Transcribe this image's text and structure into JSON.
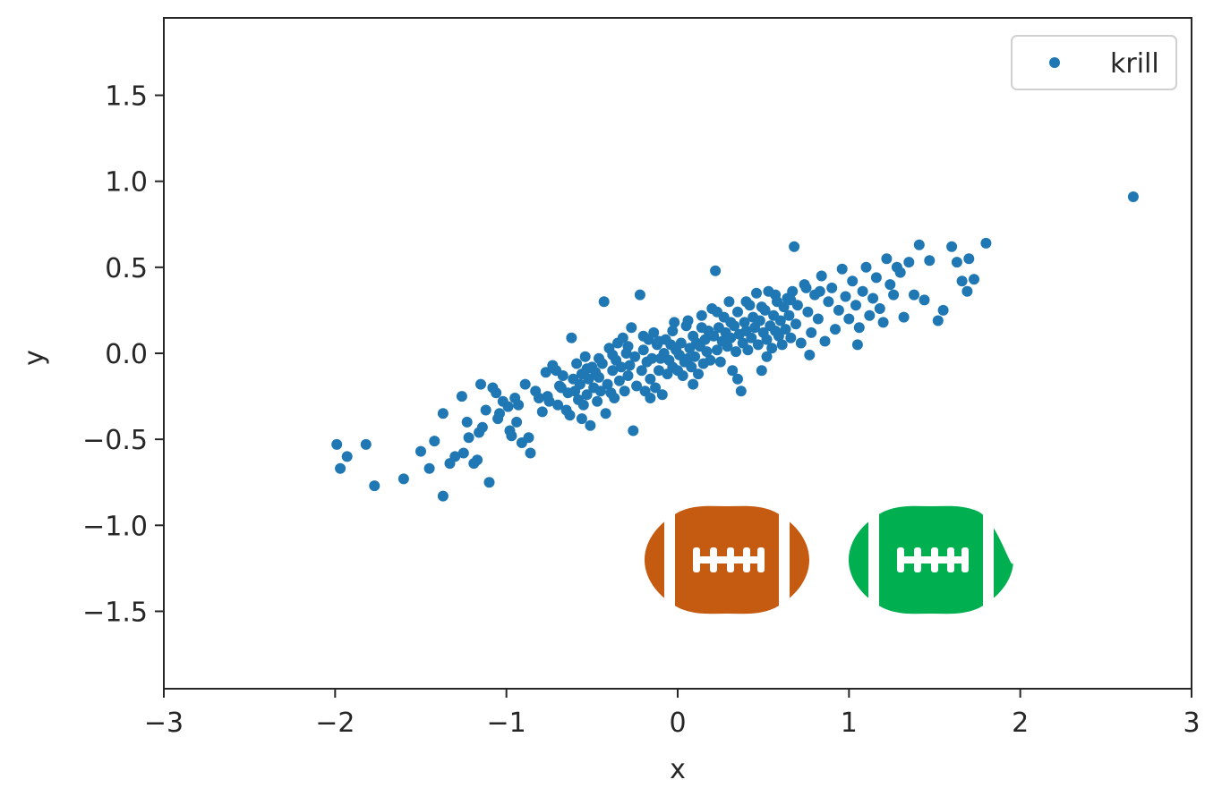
{
  "chart_data": {
    "type": "scatter",
    "title": "",
    "xlabel": "x",
    "ylabel": "y",
    "xlim": [
      -3,
      3
    ],
    "ylim": [
      -1.95,
      1.95
    ],
    "xticks": [
      -3,
      -2,
      -1,
      0,
      1,
      2,
      3
    ],
    "xtick_labels": [
      "−3",
      "−2",
      "−1",
      "0",
      "1",
      "2",
      "3"
    ],
    "yticks": [
      -1.5,
      -1.0,
      -0.5,
      0.0,
      0.5,
      1.0,
      1.5
    ],
    "ytick_labels": [
      "−1.5",
      "−1.0",
      "−0.5",
      "0.0",
      "0.5",
      "1.0",
      "1.5"
    ],
    "grid": false,
    "legend": {
      "placement": "top-right",
      "entries": [
        "krill"
      ]
    },
    "series": [
      {
        "name": "krill",
        "color": "#1f77b4",
        "points": [
          [
            -1.99,
            -0.53
          ],
          [
            -1.97,
            -0.67
          ],
          [
            -1.93,
            -0.6
          ],
          [
            -1.82,
            -0.53
          ],
          [
            -1.77,
            -0.77
          ],
          [
            -1.6,
            -0.73
          ],
          [
            -1.5,
            -0.57
          ],
          [
            -1.45,
            -0.67
          ],
          [
            -1.42,
            -0.51
          ],
          [
            -1.37,
            -0.83
          ],
          [
            -1.37,
            -0.35
          ],
          [
            -1.33,
            -0.64
          ],
          [
            -1.3,
            -0.6
          ],
          [
            -1.26,
            -0.25
          ],
          [
            -1.25,
            -0.58
          ],
          [
            -1.22,
            -0.49
          ],
          [
            -1.19,
            -0.64
          ],
          [
            -1.17,
            -0.62
          ],
          [
            -1.16,
            -0.46
          ],
          [
            -1.15,
            -0.18
          ],
          [
            -1.14,
            -0.43
          ],
          [
            -1.12,
            -0.33
          ],
          [
            -1.1,
            -0.75
          ],
          [
            -1.08,
            -0.2
          ],
          [
            -1.06,
            -0.23
          ],
          [
            -1.04,
            -0.35
          ],
          [
            -1.02,
            -0.28
          ],
          [
            -0.99,
            -0.31
          ],
          [
            -0.98,
            -0.45
          ],
          [
            -0.97,
            -0.48
          ],
          [
            -0.95,
            -0.26
          ],
          [
            -0.93,
            -0.3
          ],
          [
            -0.91,
            -0.52
          ],
          [
            -0.89,
            -0.18
          ],
          [
            -0.87,
            -0.49
          ],
          [
            -0.86,
            -0.58
          ],
          [
            -0.83,
            -0.22
          ],
          [
            -0.81,
            -0.26
          ],
          [
            -0.79,
            -0.34
          ],
          [
            -0.77,
            -0.11
          ],
          [
            -0.75,
            -0.28
          ],
          [
            -0.73,
            -0.07
          ],
          [
            -0.71,
            -0.1
          ],
          [
            -0.7,
            -0.3
          ],
          [
            -0.68,
            -0.2
          ],
          [
            -0.67,
            -0.13
          ],
          [
            -0.65,
            -0.33
          ],
          [
            -0.64,
            -0.23
          ],
          [
            -0.63,
            -0.36
          ],
          [
            -0.62,
            0.09
          ],
          [
            -0.6,
            -0.22
          ],
          [
            -0.59,
            -0.06
          ],
          [
            -0.58,
            -0.27
          ],
          [
            -0.57,
            -0.18
          ],
          [
            -0.56,
            -0.12
          ],
          [
            -0.55,
            -0.3
          ],
          [
            -0.54,
            -0.02
          ],
          [
            -0.53,
            -0.24
          ],
          [
            -0.52,
            -0.15
          ],
          [
            -0.51,
            -0.42
          ],
          [
            -0.5,
            -0.08
          ],
          [
            -0.49,
            -0.2
          ],
          [
            -0.48,
            -0.11
          ],
          [
            -0.47,
            -0.28
          ],
          [
            -0.46,
            -0.14
          ],
          [
            -0.45,
            -0.22
          ],
          [
            -0.44,
            -0.06
          ],
          [
            -0.43,
            0.3
          ],
          [
            -0.42,
            -0.35
          ],
          [
            -0.41,
            -0.18
          ],
          [
            -0.4,
            0.03
          ],
          [
            -0.39,
            -0.23
          ],
          [
            -0.38,
            -0.1
          ],
          [
            -0.37,
            -0.26
          ],
          [
            -0.36,
            -0.04
          ],
          [
            -0.35,
            0.06
          ],
          [
            -0.34,
            -0.16
          ],
          [
            -0.33,
            -0.08
          ],
          [
            -0.32,
            0.09
          ],
          [
            -0.31,
            -0.22
          ],
          [
            -0.3,
            0.0
          ],
          [
            -0.29,
            -0.13
          ],
          [
            -0.28,
            -0.07
          ],
          [
            -0.27,
            0.15
          ],
          [
            -0.26,
            -0.45
          ],
          [
            -0.25,
            -0.02
          ],
          [
            -0.24,
            -0.19
          ],
          [
            -0.22,
            0.34
          ],
          [
            -0.21,
            -0.1
          ],
          [
            -0.2,
            0.02
          ],
          [
            -0.19,
            -0.22
          ],
          [
            -0.18,
            -0.05
          ],
          [
            -0.17,
            0.08
          ],
          [
            -0.16,
            -0.15
          ],
          [
            -0.15,
            -0.03
          ],
          [
            -0.14,
            0.12
          ],
          [
            -0.13,
            -0.2
          ],
          [
            -0.12,
            0.05
          ],
          [
            -0.11,
            -0.1
          ],
          [
            -0.1,
            -0.03
          ],
          [
            -0.09,
            -0.24
          ],
          [
            -0.08,
            0.0
          ],
          [
            -0.07,
            0.08
          ],
          [
            -0.06,
            -0.12
          ],
          [
            -0.05,
            -0.04
          ],
          [
            -0.04,
            0.05
          ],
          [
            -0.03,
            -0.08
          ],
          [
            -0.02,
            0.18
          ],
          [
            -0.01,
            0.02
          ],
          [
            0.0,
            -0.1
          ],
          [
            0.01,
            -0.01
          ],
          [
            0.02,
            0.06
          ],
          [
            0.03,
            -0.13
          ],
          [
            0.04,
            -0.05
          ],
          [
            0.05,
            0.16
          ],
          [
            0.06,
            -0.03
          ],
          [
            0.07,
            0.03
          ],
          [
            0.08,
            -0.08
          ],
          [
            0.09,
            0.1
          ],
          [
            0.1,
            -0.02
          ],
          [
            0.11,
            0.06
          ],
          [
            0.12,
            -0.12
          ],
          [
            0.13,
            0.04
          ],
          [
            0.14,
            0.22
          ],
          [
            0.15,
            -0.06
          ],
          [
            0.16,
            0.08
          ],
          [
            0.17,
            0.01
          ],
          [
            0.18,
            0.13
          ],
          [
            0.19,
            -0.04
          ],
          [
            0.2,
            0.26
          ],
          [
            0.21,
            0.1
          ],
          [
            0.22,
            0.48
          ],
          [
            0.23,
            0.02
          ],
          [
            0.24,
            0.15
          ],
          [
            0.25,
            -0.05
          ],
          [
            0.26,
            0.07
          ],
          [
            0.27,
            0.21
          ],
          [
            0.28,
            0.12
          ],
          [
            0.29,
            0.04
          ],
          [
            0.3,
            0.3
          ],
          [
            0.31,
            0.09
          ],
          [
            0.32,
            -0.1
          ],
          [
            0.33,
            0.16
          ],
          [
            0.34,
            0.01
          ],
          [
            0.35,
            0.24
          ],
          [
            0.36,
            0.11
          ],
          [
            0.37,
            -0.22
          ],
          [
            0.38,
            0.06
          ],
          [
            0.39,
            0.18
          ],
          [
            0.4,
            0.13
          ],
          [
            0.41,
            0.02
          ],
          [
            0.42,
            0.28
          ],
          [
            0.43,
            0.09
          ],
          [
            0.44,
            0.21
          ],
          [
            0.45,
            0.15
          ],
          [
            0.46,
            0.35
          ],
          [
            0.47,
            0.05
          ],
          [
            0.48,
            0.19
          ],
          [
            0.49,
            -0.1
          ],
          [
            0.5,
            0.12
          ],
          [
            0.51,
            0.25
          ],
          [
            0.52,
            0.08
          ],
          [
            0.53,
            0.36
          ],
          [
            0.54,
            0.16
          ],
          [
            0.55,
            0.03
          ],
          [
            0.56,
            0.22
          ],
          [
            0.57,
            0.13
          ],
          [
            0.58,
            0.3
          ],
          [
            0.59,
            0.1
          ],
          [
            0.6,
            0.19
          ],
          [
            0.61,
            0.05
          ],
          [
            0.62,
            0.27
          ],
          [
            0.63,
            0.14
          ],
          [
            0.64,
            0.32
          ],
          [
            0.65,
            0.22
          ],
          [
            0.66,
            0.09
          ],
          [
            0.67,
            0.36
          ],
          [
            0.68,
            0.62
          ],
          [
            0.69,
            0.17
          ],
          [
            0.7,
            0.28
          ],
          [
            0.72,
            0.06
          ],
          [
            0.74,
            0.4
          ],
          [
            0.76,
            0.24
          ],
          [
            0.78,
            0.12
          ],
          [
            0.8,
            0.34
          ],
          [
            0.82,
            0.2
          ],
          [
            0.84,
            0.45
          ],
          [
            0.86,
            0.07
          ],
          [
            0.88,
            0.3
          ],
          [
            0.9,
            0.38
          ],
          [
            0.92,
            0.14
          ],
          [
            0.94,
            0.25
          ],
          [
            0.96,
            0.49
          ],
          [
            0.98,
            0.33
          ],
          [
            1.0,
            0.2
          ],
          [
            1.02,
            0.42
          ],
          [
            1.04,
            0.28
          ],
          [
            1.06,
            0.15
          ],
          [
            1.08,
            0.36
          ],
          [
            1.1,
            0.5
          ],
          [
            1.12,
            0.22
          ],
          [
            1.14,
            0.32
          ],
          [
            1.16,
            0.44
          ],
          [
            1.18,
            0.26
          ],
          [
            1.2,
            0.18
          ],
          [
            1.22,
            0.55
          ],
          [
            1.24,
            0.4
          ],
          [
            1.26,
            0.34
          ],
          [
            1.28,
            0.5
          ],
          [
            1.3,
            0.47
          ],
          [
            1.32,
            0.21
          ],
          [
            1.35,
            0.53
          ],
          [
            1.38,
            0.34
          ],
          [
            1.41,
            0.63
          ],
          [
            1.44,
            0.31
          ],
          [
            1.47,
            0.54
          ],
          [
            1.52,
            0.19
          ],
          [
            1.55,
            0.25
          ],
          [
            1.6,
            0.62
          ],
          [
            1.63,
            0.53
          ],
          [
            1.66,
            0.42
          ],
          [
            1.69,
            0.36
          ],
          [
            1.7,
            0.55
          ],
          [
            1.73,
            0.43
          ],
          [
            1.8,
            0.64
          ],
          [
            -0.76,
            -0.25
          ],
          [
            -0.69,
            -0.19
          ],
          [
            -0.61,
            -0.15
          ],
          [
            -0.53,
            -0.09
          ],
          [
            -0.46,
            -0.03
          ],
          [
            -0.38,
            -0.01
          ],
          [
            -0.29,
            0.04
          ],
          [
            -0.2,
            0.1
          ],
          [
            -0.11,
            0.07
          ],
          [
            -0.03,
            0.13
          ],
          [
            0.06,
            0.19
          ],
          [
            0.14,
            0.15
          ],
          [
            0.23,
            0.24
          ],
          [
            0.31,
            0.18
          ],
          [
            0.4,
            0.3
          ],
          [
            0.49,
            0.27
          ],
          [
            0.57,
            0.34
          ],
          [
            0.66,
            0.31
          ],
          [
            0.75,
            0.38
          ],
          [
            0.83,
            0.36
          ],
          [
            -1.23,
            -0.4
          ],
          [
            -1.05,
            -0.38
          ],
          [
            -0.94,
            -0.4
          ],
          [
            -0.56,
            -0.38
          ],
          [
            -0.16,
            -0.26
          ],
          [
            0.09,
            -0.18
          ],
          [
            0.35,
            -0.15
          ],
          [
            0.52,
            -0.02
          ],
          [
            0.77,
            -0.01
          ],
          [
            1.05,
            0.05
          ],
          [
            2.66,
            0.91
          ]
        ]
      }
    ]
  },
  "decorations": {
    "football_left_color": "#c55a11",
    "football_right_color": "#00b050",
    "icon_names": [
      "football-icon",
      "football-icon"
    ]
  }
}
